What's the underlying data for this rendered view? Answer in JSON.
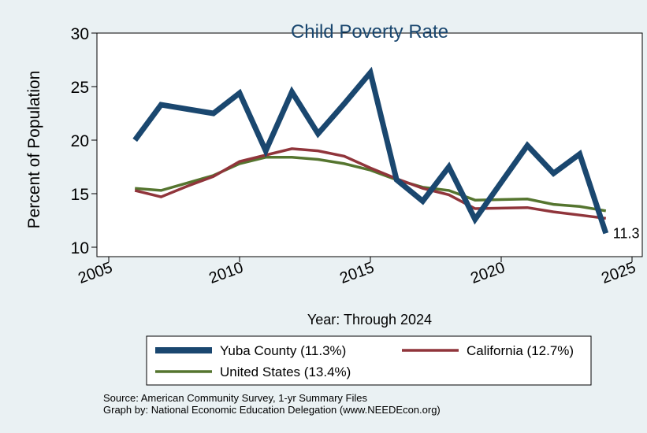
{
  "chart_data": {
    "type": "line",
    "title": "Child Poverty Rate",
    "xlabel": "Year: Through 2024",
    "ylabel": "Percent of Population",
    "xlim": [
      2005,
      2025
    ],
    "ylim": [
      10,
      30
    ],
    "x_ticks": [
      2005,
      2010,
      2015,
      2020,
      2025
    ],
    "y_ticks": [
      10,
      15,
      20,
      25,
      30
    ],
    "grid": false,
    "legend_position": "bottom",
    "end_label": "11.3",
    "series": [
      {
        "name": "Yuba County (11.3%)",
        "color": "#1a476f",
        "x": [
          2006,
          2007,
          2008,
          2009,
          2010,
          2011,
          2012,
          2013,
          2014,
          2015,
          2016,
          2017,
          2018,
          2019,
          2021,
          2022,
          2023,
          2024
        ],
        "y": [
          20.0,
          23.3,
          22.9,
          22.5,
          24.4,
          19.0,
          24.5,
          20.6,
          23.4,
          26.3,
          16.3,
          14.3,
          17.5,
          12.6,
          19.5,
          16.9,
          18.7,
          11.3
        ]
      },
      {
        "name": "California (12.7%)",
        "color": "#90353b",
        "x": [
          2006,
          2007,
          2008,
          2009,
          2010,
          2011,
          2012,
          2013,
          2014,
          2015,
          2016,
          2017,
          2018,
          2019,
          2021,
          2022,
          2023,
          2024
        ],
        "y": [
          15.3,
          14.7,
          15.7,
          16.6,
          18.0,
          18.6,
          19.2,
          19.0,
          18.5,
          17.4,
          16.4,
          15.5,
          14.9,
          13.6,
          13.7,
          13.3,
          13.0,
          12.7
        ]
      },
      {
        "name": "United States (13.4%)",
        "color": "#55752f",
        "x": [
          2006,
          2007,
          2008,
          2009,
          2010,
          2011,
          2012,
          2013,
          2014,
          2015,
          2016,
          2017,
          2018,
          2019,
          2021,
          2022,
          2023,
          2024
        ],
        "y": [
          15.5,
          15.3,
          16.0,
          16.7,
          17.8,
          18.4,
          18.4,
          18.2,
          17.8,
          17.2,
          16.3,
          15.6,
          15.3,
          14.4,
          14.5,
          14.0,
          13.8,
          13.4
        ]
      }
    ]
  },
  "footer": {
    "source": "Source: American Community Survey, 1-yr Summary Files",
    "credit": "Graph by: National Economic Education Delegation (www.NEEDEcon.org)"
  }
}
